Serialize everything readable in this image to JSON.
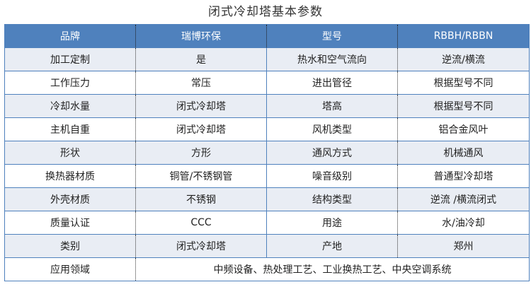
{
  "title": "闭式冷却塔基本参数",
  "header": [
    "品牌",
    "瑞博环保",
    "型号",
    "RBBH/RBBN"
  ],
  "rows": [
    [
      "加工定制",
      "是",
      "热水和空气流向",
      "逆流/横流"
    ],
    [
      "工作压力",
      "常压",
      "进出管径",
      "根据型号不同"
    ],
    [
      "冷却水量",
      "闭式冷却塔",
      "塔高",
      "根据型号不同"
    ],
    [
      "主机自重",
      "闭式冷却塔",
      "风机类型",
      "铝合金风叶"
    ],
    [
      "形状",
      "方形",
      "通风方式",
      "机械通风"
    ],
    [
      "换热器材质",
      "铜管/不锈钢管",
      "噪音级别",
      "普通型冷却塔"
    ],
    [
      "外壳材质",
      "不锈钢",
      "结构类型",
      "逆流  /横流闭式"
    ],
    [
      "质量认证",
      "CCC",
      "用途",
      "水/油冷却"
    ],
    [
      "类别",
      "闭式冷却塔",
      "产地",
      "郑州"
    ]
  ],
  "last_row": {
    "label": "应用领域",
    "value": "中频设备、热处理工艺、工业换热工艺、中央空调系统"
  },
  "colors": {
    "header_bg": "#4f81bd",
    "shaded_row": "#e9edf4"
  }
}
